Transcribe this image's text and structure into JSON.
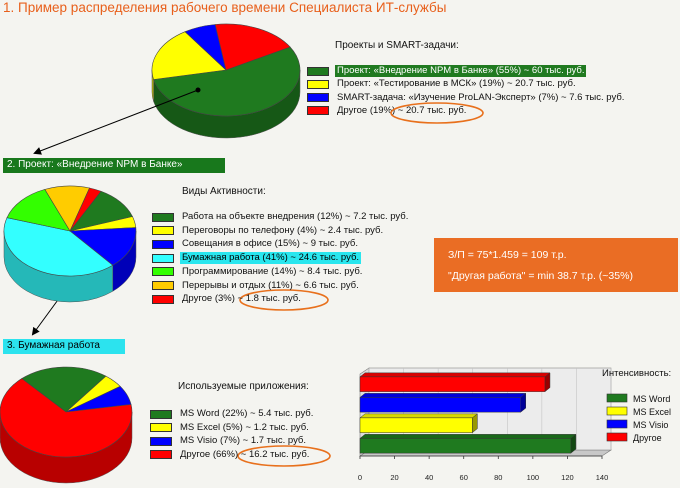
{
  "title": "1. Пример распределения рабочего времени Специалиста ИТ-службы",
  "section1": {
    "heading": "Проекты и SMART-задачи:",
    "items": [
      {
        "label": "Проект: «Внедрение NPM в Банке» (55%) ~ 60 тыс. руб.",
        "color": "#1f7a1f",
        "highlight": true
      },
      {
        "label": "Проект: «Тестирование в МСК» (19%) ~ 20.7 тыс. руб.",
        "color": "#ffff00"
      },
      {
        "label": "SMART-задача: «Изучение ProLAN-Эксперт» (7%) ~ 7.6 тыс. руб.",
        "color": "#0000ff"
      },
      {
        "label": "Другое (19%) ~ 20.7 тыс. руб.",
        "color": "#ff0000"
      }
    ]
  },
  "tag1": "2. Проект: «Внедрение NPM в Банке»",
  "section2": {
    "heading": "Виды Активности:",
    "items": [
      {
        "label": "Работа на объекте внедрения (12%) ~ 7.2 тыс. руб.",
        "color": "#1f7a1f"
      },
      {
        "label": "Переговоры по телефону (4%) ~ 2.4 тыс. руб.",
        "color": "#ffff00"
      },
      {
        "label": "Совещания в офисе (15%) ~ 9 тыс. руб.",
        "color": "#0000ff"
      },
      {
        "label": "Бумажная работа (41%) ~ 24.6 тыс. руб.",
        "color": "#33ffff",
        "highlight": true
      },
      {
        "label": "Программирование (14%) ~ 8.4 тыс. руб.",
        "color": "#33ff00"
      },
      {
        "label": "Перерывы и отдых (11%) ~ 6.6 тыс. руб.",
        "color": "#ffcc00"
      },
      {
        "label": "Другое (3%) ~ 1.8 тыс. руб.",
        "color": "#ff0000"
      }
    ]
  },
  "info": {
    "line1": "З/П = 75*1.459 = 109 т.р.",
    "line2": "\"Другая работа\" = min 38.7 т.р. (~35%)"
  },
  "tag2": "3. Бумажная работа",
  "section3": {
    "heading": "Используемые приложения:",
    "items": [
      {
        "label": "MS Word (22%) ~ 5.4 тыс. руб.",
        "color": "#1f7a1f"
      },
      {
        "label": "MS Excel (5%) ~ 1.2 тыс. руб.",
        "color": "#ffff00"
      },
      {
        "label": "MS Visio (7%) ~ 1.7 тыс. руб.",
        "color": "#0000ff"
      },
      {
        "label": "Другое (66%) ~ 16.2 тыс. руб.",
        "color": "#ff0000"
      }
    ]
  },
  "chart_data": [
    {
      "type": "pie",
      "categories": [
        "Проект: «Внедрение NPM в Банке»",
        "Проект: «Тестирование в МСК»",
        "SMART-задача: «Изучение ProLAN-Эксперт»",
        "Другое"
      ],
      "values": [
        55,
        19,
        7,
        19
      ],
      "colors": [
        "#1f7a1f",
        "#ffff00",
        "#0000ff",
        "#ff0000"
      ]
    },
    {
      "type": "pie",
      "categories": [
        "Работа на объекте внедрения",
        "Переговоры по телефону",
        "Совещания в офисе",
        "Бумажная работа",
        "Программирование",
        "Перерывы и отдых",
        "Другое"
      ],
      "values": [
        12,
        4,
        15,
        41,
        14,
        11,
        3
      ],
      "colors": [
        "#1f7a1f",
        "#ffff00",
        "#0000ff",
        "#33ffff",
        "#33ff00",
        "#ffcc00",
        "#ff0000"
      ]
    },
    {
      "type": "pie",
      "categories": [
        "MS Word",
        "MS Excel",
        "MS Visio",
        "Другое"
      ],
      "values": [
        22,
        5,
        7,
        66
      ],
      "colors": [
        "#1f7a1f",
        "#ffff00",
        "#0000ff",
        "#ff0000"
      ]
    },
    {
      "type": "bar",
      "orientation": "horizontal",
      "title": "Интенсивность:",
      "categories": [
        "MS Word",
        "MS Excel",
        "MS Visio",
        "Другое"
      ],
      "values": [
        122,
        65,
        93,
        107
      ],
      "colors": [
        "#1f7a1f",
        "#ffff00",
        "#0000ff",
        "#ff0000"
      ],
      "xlim": [
        0,
        140
      ],
      "xticks": [
        0,
        20,
        40,
        60,
        80,
        100,
        120,
        140
      ]
    }
  ]
}
